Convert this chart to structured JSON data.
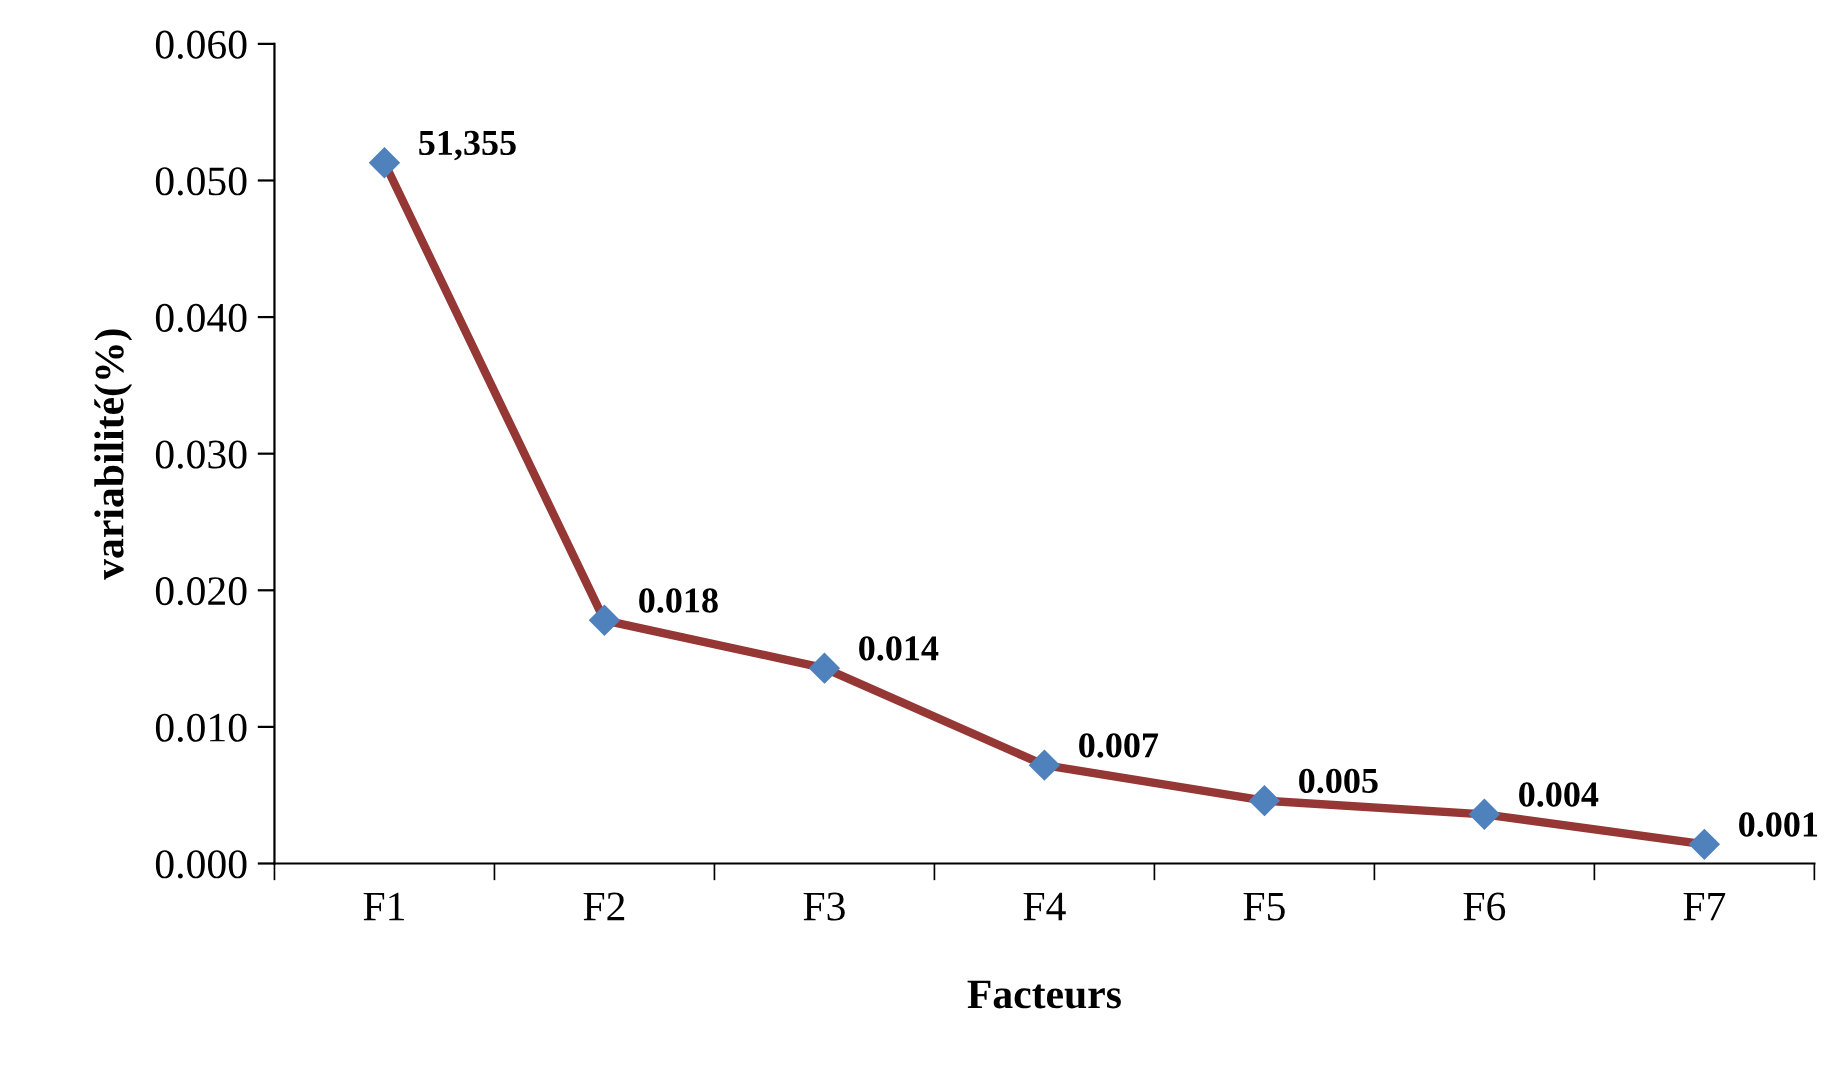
{
  "chart_data": {
    "type": "line",
    "xlabel": "Facteurs",
    "ylabel": "variabilité(%)",
    "categories": [
      "F1",
      "F2",
      "F3",
      "F4",
      "F5",
      "F6",
      "F7"
    ],
    "series": [
      {
        "color": "#953735",
        "colors": [
          "#4f81bd",
          "#4f81bd",
          "#4f81bd",
          "#4f81bd",
          "#4f81bd",
          "#4f81bd",
          "#4f81bd"
        ],
        "values": [
          0.0513,
          0.0178,
          0.0143,
          0.0072,
          0.0046,
          0.0036,
          0.0014
        ],
        "value_labels": [
          null,
          "0.018",
          "0.014",
          "0.007",
          "0.005",
          "0.004",
          "0.001"
        ]
      }
    ],
    "ylim": [
      0,
      0.06
    ],
    "yticks": [
      {
        "value": 0,
        "label": "0.000"
      },
      {
        "value": 0.01,
        "label": "0.010"
      },
      {
        "value": 0.02,
        "label": "0.020"
      },
      {
        "value": 0.03,
        "label": "0.030"
      },
      {
        "value": 0.04,
        "label": "0.040"
      },
      {
        "value": 0.05,
        "label": "0.050"
      },
      {
        "value": 0.06,
        "label": "0.060"
      }
    ],
    "annotations": [
      {
        "text": "51,355",
        "x": "F1",
        "y": 0.0513
      }
    ],
    "marker": "diamond",
    "line_style": "solid",
    "grid": false,
    "legend": false
  }
}
